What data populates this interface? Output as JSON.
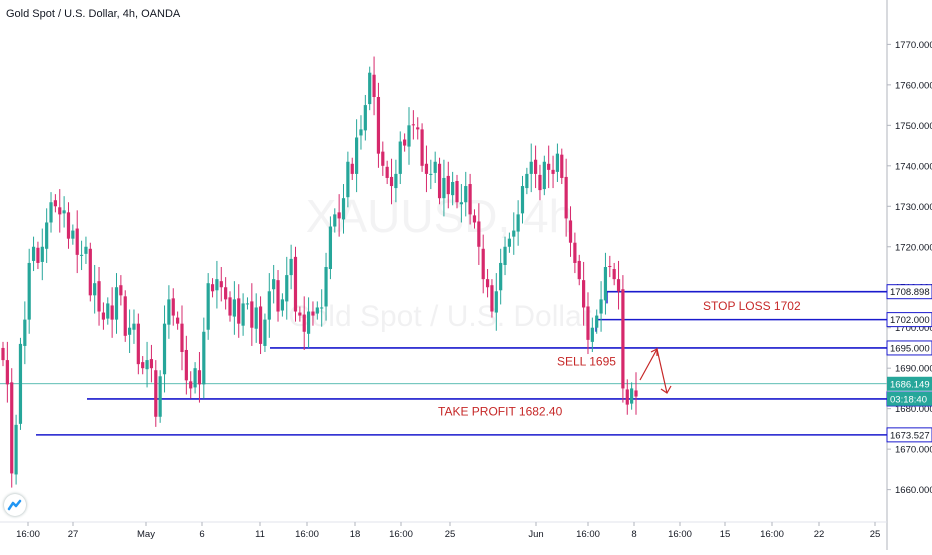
{
  "header": {
    "title": "Gold Spot / U.S. Dollar, 4h, OANDA"
  },
  "watermark": {
    "symbol": "XAUUSD, 4h",
    "name": "Gold Spot / U.S. Dollar"
  },
  "colors": {
    "up": "#26a69a",
    "down": "#d6286b",
    "level": "#1a1acd",
    "annotation": "#c62828",
    "price_badge": "#26a69a",
    "axis_text": "#131722"
  },
  "chart_data": {
    "type": "candlestick",
    "ylim": [
      1652,
      1778
    ],
    "y_ticks": [
      "1660.000",
      "1670.000",
      "1680.000",
      "1690.000",
      "1700.000",
      "1710.000",
      "1720.000",
      "1730.000",
      "1740.000",
      "1750.000",
      "1760.000",
      "1770.000"
    ],
    "x_ticks": [
      "16:00",
      "27",
      "May",
      "6",
      "11",
      "16:00",
      "18",
      "16:00",
      "25",
      "Jun",
      "16:00",
      "8",
      "16:00",
      "15",
      "16:00",
      "22",
      "25"
    ],
    "price_levels": [
      {
        "label": "1708.898",
        "value": 1708.898
      },
      {
        "label": "1702.000",
        "value": 1702.0
      },
      {
        "label": "1695.000",
        "value": 1695.0
      },
      {
        "label": "1682.400",
        "value": 1682.4
      },
      {
        "label": "1673.527",
        "value": 1673.527
      }
    ],
    "current_price": {
      "label": "1686.149",
      "value": 1686.149,
      "countdown": "03:18:40"
    },
    "annotations": [
      {
        "text": "STOP LOSS 1702",
        "value": 1705.4
      },
      {
        "text": "SELL 1695",
        "value": 1691.6
      },
      {
        "text": "TAKE PROFIT 1682.40",
        "value": 1679.3
      }
    ],
    "closes": [
      1692,
      1686,
      1664,
      1676,
      1696,
      1702,
      1716,
      1720,
      1716,
      1720,
      1726,
      1731,
      1730,
      1728,
      1729,
      1722,
      1724,
      1718,
      1718,
      1720,
      1708,
      1711,
      1704,
      1702,
      1706,
      1702,
      1710,
      1708,
      1698,
      1700,
      1701,
      1691,
      1690,
      1692,
      1690,
      1678,
      1688,
      1701,
      1707,
      1703,
      1701,
      1694,
      1687,
      1685,
      1690,
      1686,
      1699,
      1711,
      1709,
      1712,
      1710,
      1707,
      1703,
      1707,
      1701,
      1706,
      1706,
      1700,
      1705,
      1696,
      1702,
      1709,
      1712,
      1704,
      1707,
      1713,
      1717,
      1704,
      1703,
      1699,
      1704,
      1703,
      1705,
      1705,
      1715,
      1725,
      1728,
      1727,
      1732,
      1741,
      1738,
      1747,
      1749,
      1755,
      1763,
      1757,
      1743,
      1740,
      1737,
      1735,
      1738,
      1746,
      1745,
      1750,
      1750,
      1749,
      1740,
      1738,
      1738,
      1741,
      1732,
      1737,
      1733,
      1736,
      1731,
      1731,
      1735,
      1728,
      1726,
      1720,
      1712,
      1710,
      1704,
      1709,
      1716,
      1720,
      1722,
      1724,
      1728,
      1735,
      1738,
      1741,
      1738,
      1734,
      1741,
      1739,
      1738,
      1743,
      1737,
      1727,
      1721,
      1716,
      1712,
      1705,
      1697,
      1700,
      1703,
      1707,
      1715,
      1715,
      1712,
      1709,
      1685,
      1681,
      1685,
      1683
    ]
  }
}
